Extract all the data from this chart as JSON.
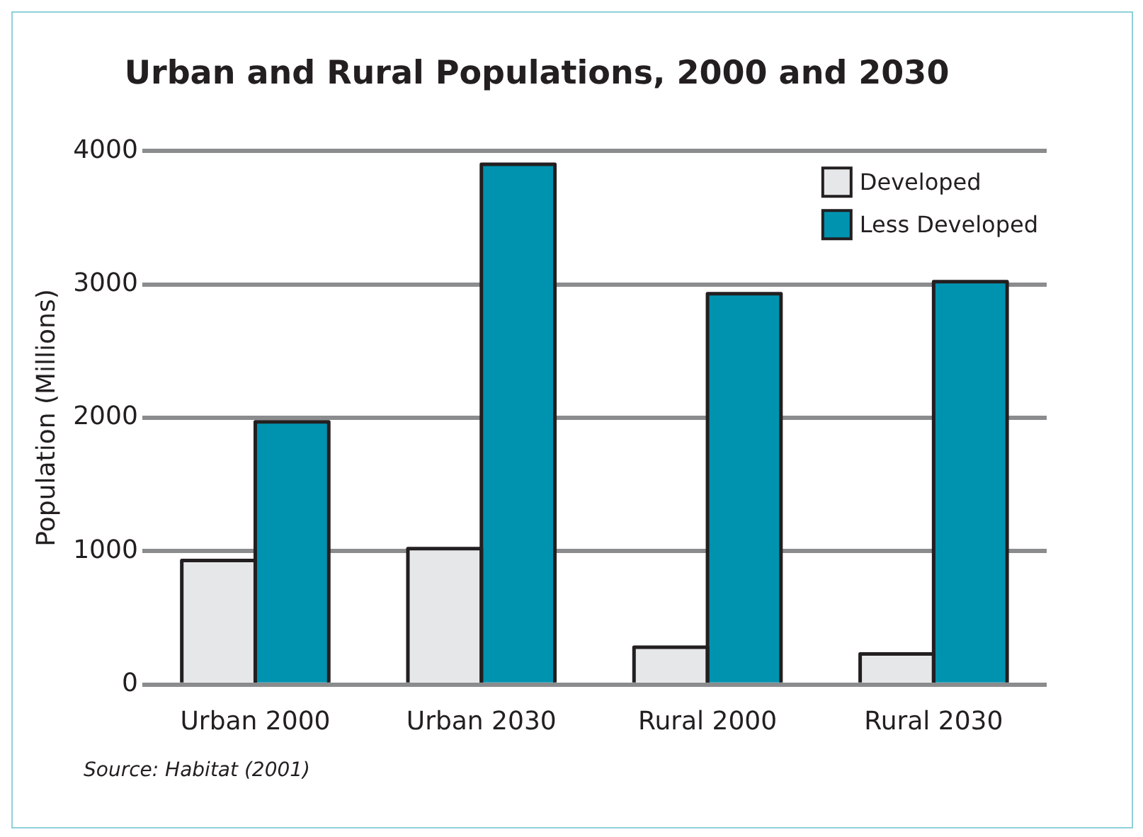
{
  "chart_data": {
    "type": "bar",
    "title": "Urban and Rural Populations, 2000 and 2030",
    "ylabel": "Population (Millions)",
    "categories": [
      "Urban 2000",
      "Urban 2030",
      "Rural 2000",
      "Rural 2030"
    ],
    "series": [
      {
        "name": "Developed",
        "color": "#e6e7e8",
        "values": [
          930,
          1020,
          280,
          230
        ]
      },
      {
        "name": "Less Developed",
        "color": "#0093b0",
        "values": [
          1970,
          3900,
          2930,
          3020
        ]
      }
    ],
    "ylim": [
      0,
      4000
    ],
    "yticks": [
      0,
      1000,
      2000,
      3000,
      4000
    ],
    "grid": "y",
    "legend": "top right",
    "annotations": [
      "Source: Habitat (2001)"
    ]
  }
}
